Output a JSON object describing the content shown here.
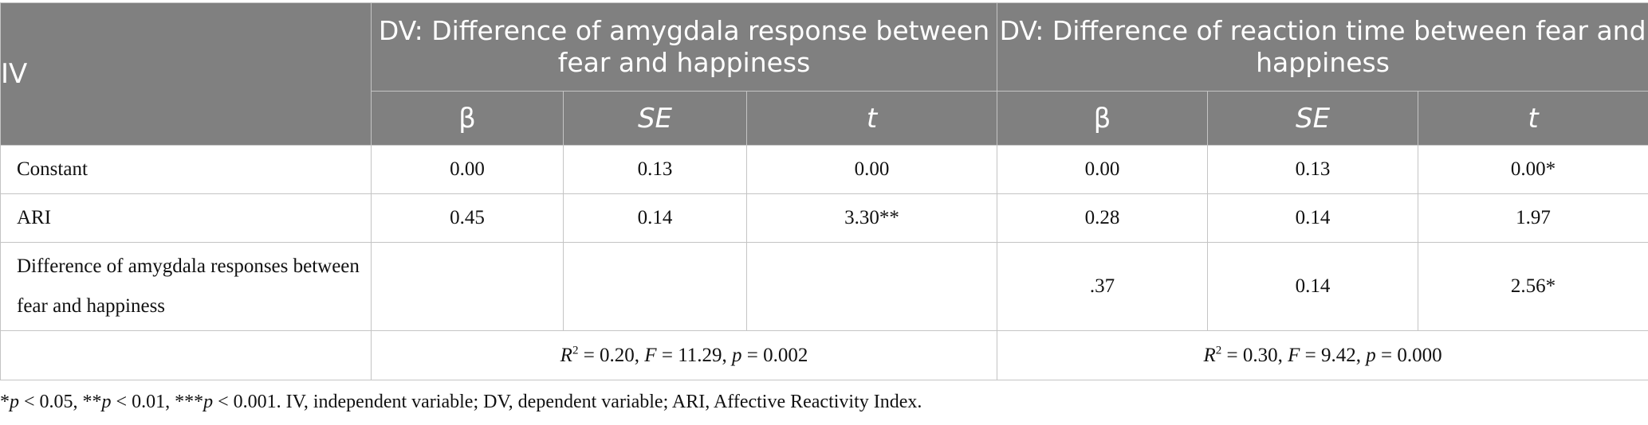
{
  "header": {
    "iv": "IV",
    "group1": "DV: Difference of amygdala response between fear and happiness",
    "group2": "DV: Difference of reaction time between fear and happiness",
    "cols": [
      "β",
      "SE",
      "t",
      "β",
      "SE",
      "t"
    ]
  },
  "rows": [
    {
      "label": "Constant",
      "cells": [
        "0.00",
        "0.13",
        "0.00",
        "0.00",
        "0.13",
        "0.00*"
      ]
    },
    {
      "label": "ARI",
      "cells": [
        "0.45",
        "0.14",
        "3.30**",
        "0.28",
        "0.14",
        "1.97"
      ]
    },
    {
      "label": "Difference of amygdala responses between fear and happiness",
      "cells": [
        "",
        "",
        "",
        ".37",
        "0.14",
        "2.56*"
      ]
    }
  ],
  "fit": {
    "left": {
      "r2": "0.20",
      "f": "11.29",
      "p": "0.002"
    },
    "right": {
      "r2": "0.30",
      "f": "9.42",
      "p": "0.000"
    }
  },
  "footnote": {
    "sig1": "< 0.05, **",
    "sig2": "< 0.01, ***",
    "sig3": "< 0.001. IV, independent variable; DV, dependent variable; ARI, Affective Reactivity Index."
  }
}
